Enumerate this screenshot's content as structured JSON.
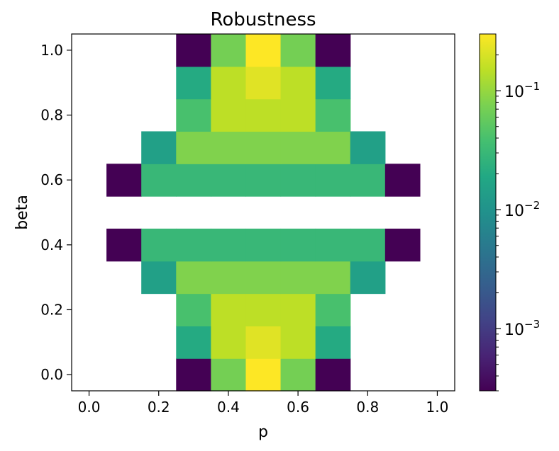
{
  "chart_data": {
    "type": "heatmap",
    "title": "Robustness",
    "xlabel": "p",
    "ylabel": "beta",
    "xlim": [
      -0.05,
      1.05
    ],
    "ylim": [
      -0.05,
      1.05
    ],
    "x": [
      0.0,
      0.1,
      0.2,
      0.3,
      0.4,
      0.5,
      0.6,
      0.7,
      0.8,
      0.9,
      1.0
    ],
    "y": [
      0.0,
      0.1,
      0.2,
      0.3,
      0.4,
      0.5,
      0.6,
      0.7,
      0.8,
      0.9,
      1.0
    ],
    "xticks": [
      "0.0",
      "0.2",
      "0.4",
      "0.6",
      "0.8",
      "1.0"
    ],
    "yticks": [
      "0.0",
      "0.2",
      "0.4",
      "0.6",
      "0.8",
      "1.0"
    ],
    "colorbar": {
      "scale": "log",
      "colormap": "viridis",
      "range": [
        0.0003,
        0.3
      ],
      "ticks": [
        {
          "value": 0.001,
          "base": "10",
          "exp": "−3"
        },
        {
          "value": 0.01,
          "base": "10",
          "exp": "−2"
        },
        {
          "value": 0.1,
          "base": "10",
          "exp": "−1"
        }
      ]
    },
    "values": [
      [
        null,
        null,
        null,
        0.0003,
        0.07,
        0.3,
        0.07,
        0.0003,
        null,
        null,
        null
      ],
      [
        null,
        null,
        null,
        0.02,
        0.15,
        0.22,
        0.15,
        0.02,
        null,
        null,
        null
      ],
      [
        null,
        null,
        null,
        0.04,
        0.15,
        0.15,
        0.15,
        0.04,
        null,
        null,
        null
      ],
      [
        null,
        null,
        0.015,
        0.08,
        0.08,
        0.08,
        0.08,
        0.08,
        0.015,
        null,
        null
      ],
      [
        null,
        0.0003,
        0.03,
        0.03,
        0.03,
        0.03,
        0.03,
        0.03,
        0.03,
        0.0003,
        null
      ],
      [
        null,
        null,
        null,
        null,
        null,
        null,
        null,
        null,
        null,
        null,
        null
      ],
      [
        null,
        0.0003,
        0.03,
        0.03,
        0.03,
        0.03,
        0.03,
        0.03,
        0.03,
        0.0003,
        null
      ],
      [
        null,
        null,
        0.015,
        0.08,
        0.08,
        0.08,
        0.08,
        0.08,
        0.015,
        null,
        null
      ],
      [
        null,
        null,
        null,
        0.04,
        0.15,
        0.15,
        0.15,
        0.04,
        null,
        null,
        null
      ],
      [
        null,
        null,
        null,
        0.02,
        0.15,
        0.22,
        0.15,
        0.02,
        null,
        null,
        null
      ],
      [
        null,
        null,
        null,
        0.0003,
        0.07,
        0.3,
        0.07,
        0.0003,
        null,
        null,
        null
      ]
    ]
  }
}
